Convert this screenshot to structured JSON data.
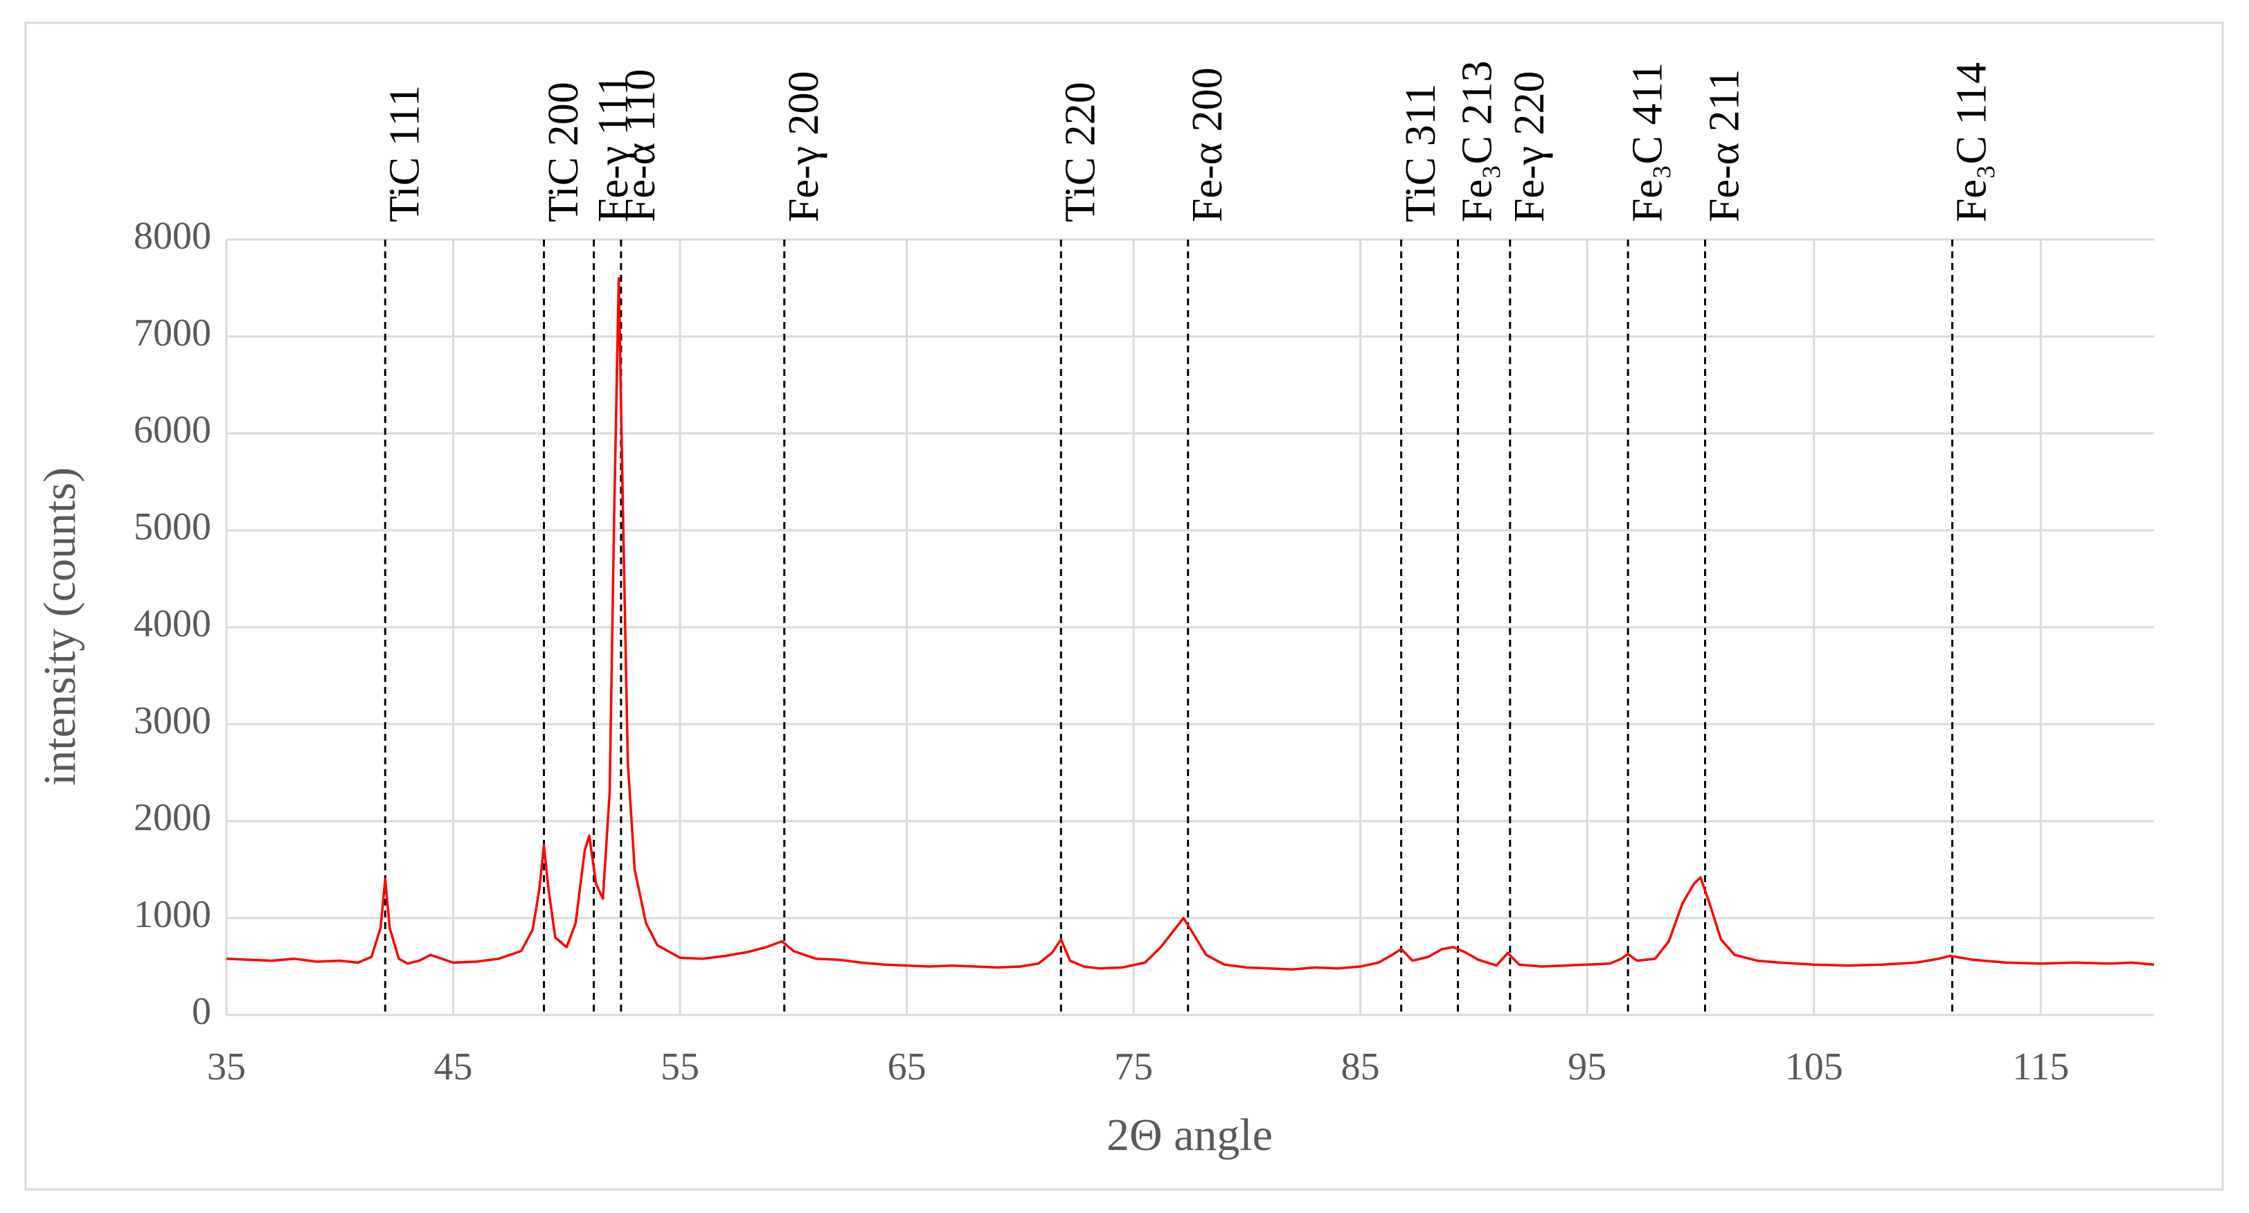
{
  "chart_data": {
    "type": "line",
    "xlabel": "2Θ angle",
    "ylabel": "intensity (counts)",
    "xlim": [
      35,
      120
    ],
    "xticks": [
      35,
      45,
      55,
      65,
      75,
      85,
      95,
      105,
      115
    ],
    "ylim": [
      0,
      8000
    ],
    "yticks": [
      0,
      1000,
      2000,
      3000,
      4000,
      5000,
      6000,
      7000,
      8000
    ],
    "grid": true,
    "x": [
      35,
      36,
      37,
      38,
      39,
      40,
      40.8,
      41.4,
      41.8,
      42,
      42.2,
      42.6,
      43,
      43.5,
      44,
      44.5,
      45,
      46,
      47,
      47.5,
      48,
      48.5,
      48.8,
      49,
      49.2,
      49.5,
      50,
      50.4,
      50.8,
      51,
      51.3,
      51.6,
      51.9,
      52.1,
      52.3,
      52.5,
      52.7,
      53,
      53.5,
      54,
      55,
      56,
      57,
      58,
      58.8,
      59.5,
      60,
      61,
      62,
      63,
      64,
      65,
      66,
      67,
      68,
      69,
      70,
      70.8,
      71.4,
      71.8,
      72.2,
      72.8,
      73.5,
      74.5,
      75.5,
      76.2,
      76.8,
      77.2,
      77.6,
      78.2,
      79,
      80,
      81,
      82,
      83,
      84,
      85,
      85.8,
      86.4,
      86.8,
      87.3,
      88,
      88.6,
      89.1,
      89.6,
      90.2,
      91,
      91.5,
      92,
      93,
      94,
      95,
      96,
      96.5,
      96.8,
      97.2,
      98,
      98.6,
      99.2,
      99.7,
      100,
      100.4,
      100.9,
      101.5,
      102.5,
      103.5,
      105,
      106.5,
      108,
      109.5,
      110.5,
      111,
      112,
      113.5,
      115,
      116.5,
      118,
      119,
      120
    ],
    "series": [
      {
        "color": "#ff0000",
        "values": [
          580,
          570,
          560,
          580,
          550,
          560,
          540,
          600,
          900,
          1400,
          900,
          580,
          530,
          560,
          620,
          580,
          540,
          550,
          580,
          620,
          660,
          880,
          1300,
          1750,
          1300,
          800,
          700,
          950,
          1700,
          1850,
          1350,
          1200,
          2300,
          5200,
          7600,
          5000,
          2600,
          1500,
          950,
          720,
          590,
          580,
          610,
          650,
          700,
          760,
          660,
          580,
          570,
          540,
          520,
          510,
          500,
          510,
          500,
          490,
          500,
          530,
          640,
          780,
          560,
          500,
          480,
          490,
          540,
          700,
          880,
          1000,
          850,
          620,
          520,
          490,
          480,
          470,
          490,
          480,
          500,
          540,
          620,
          680,
          560,
          600,
          680,
          700,
          650,
          570,
          510,
          640,
          520,
          500,
          510,
          520,
          530,
          580,
          630,
          560,
          580,
          760,
          1150,
          1350,
          1420,
          1150,
          780,
          620,
          560,
          540,
          520,
          510,
          520,
          540,
          580,
          610,
          570,
          540,
          530,
          540,
          530,
          540,
          520
        ]
      }
    ],
    "annotations": [
      {
        "x": 42,
        "label": "TiC 111"
      },
      {
        "x": 49,
        "label": "TiC 200"
      },
      {
        "x": 51.2,
        "label": "Fe-γ 111"
      },
      {
        "x": 52.4,
        "label": "Fe-α 110"
      },
      {
        "x": 59.6,
        "label": "Fe-γ 200"
      },
      {
        "x": 71.8,
        "label": "TiC 220"
      },
      {
        "x": 77.4,
        "label": "Fe-α 200"
      },
      {
        "x": 86.8,
        "label": "TiC 311"
      },
      {
        "x": 89.3,
        "label": "Fe₃C 213"
      },
      {
        "x": 91.6,
        "label": "Fe-γ 220"
      },
      {
        "x": 96.8,
        "label": "Fe₃C 411"
      },
      {
        "x": 100.2,
        "label": "Fe-α 211"
      },
      {
        "x": 111.1,
        "label": "Fe₃C 114"
      }
    ]
  }
}
